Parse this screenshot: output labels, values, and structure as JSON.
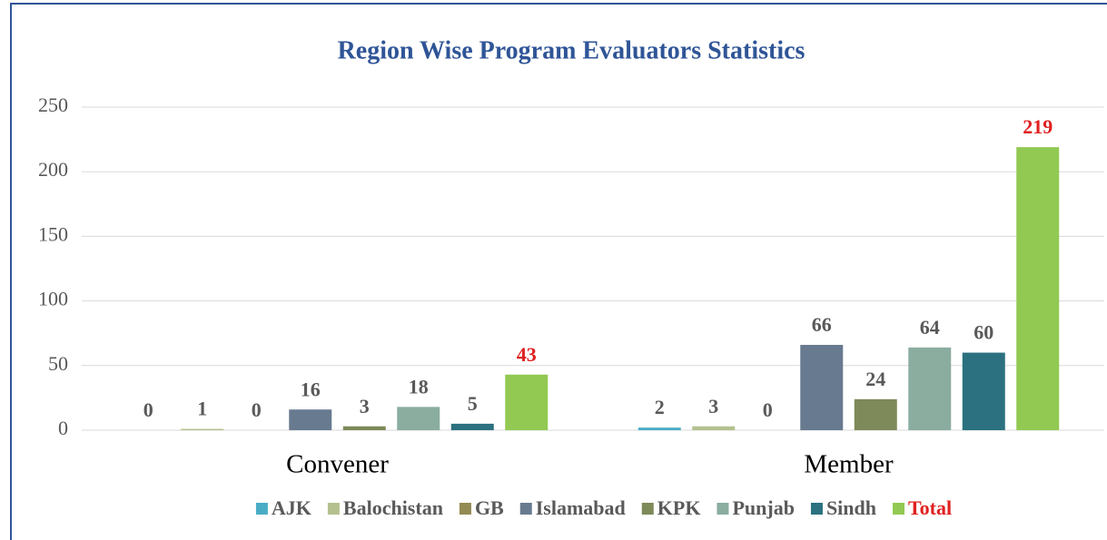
{
  "chart_data": {
    "type": "bar",
    "title": "Region Wise Program Evaluators Statistics",
    "categories": [
      "Convener",
      "Member"
    ],
    "series": [
      {
        "name": "AJK",
        "color": "#4bacc6",
        "label_color": "#595959",
        "values": [
          0,
          2
        ]
      },
      {
        "name": "Balochistan",
        "color": "#b4c18e",
        "label_color": "#595959",
        "values": [
          1,
          3
        ]
      },
      {
        "name": "GB",
        "color": "#948a54",
        "label_color": "#595959",
        "values": [
          0,
          0
        ]
      },
      {
        "name": "Islamabad",
        "color": "#687a8f",
        "label_color": "#595959",
        "values": [
          16,
          66
        ]
      },
      {
        "name": "KPK",
        "color": "#7e8a5a",
        "label_color": "#595959",
        "values": [
          3,
          24
        ]
      },
      {
        "name": "Punjab",
        "color": "#8aada0",
        "label_color": "#595959",
        "values": [
          18,
          64
        ]
      },
      {
        "name": "Sindh",
        "color": "#2b717f",
        "label_color": "#595959",
        "values": [
          5,
          60
        ]
      },
      {
        "name": "Total",
        "color": "#92c952",
        "label_color": "#e02020",
        "values": [
          43,
          219
        ]
      }
    ],
    "ylim": [
      0,
      250
    ],
    "yticks": [
      0,
      50,
      100,
      150,
      200,
      250
    ],
    "grid": true,
    "legend": "bottom"
  }
}
